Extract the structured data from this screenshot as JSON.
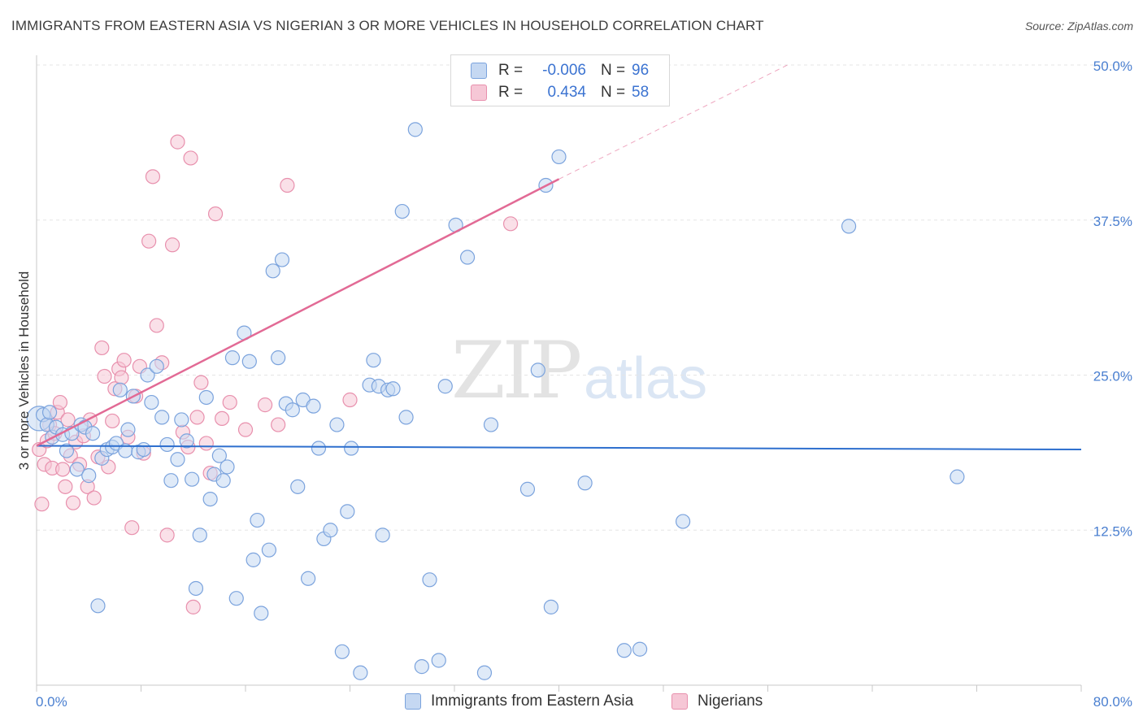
{
  "title": "IMMIGRANTS FROM EASTERN ASIA VS NIGERIAN 3 OR MORE VEHICLES IN HOUSEHOLD CORRELATION CHART",
  "source": "Source: ZipAtlas.com",
  "watermark": {
    "zip": "ZIP",
    "atlas": "atlas"
  },
  "legend": {
    "r_label": "R =",
    "n_label": "N =",
    "series": [
      {
        "r": "-0.006",
        "n": "96"
      },
      {
        "r": "0.434",
        "n": "58"
      }
    ]
  },
  "colors": {
    "blue_fill": "#c5d8f2",
    "blue_stroke": "#7ba3dd",
    "blue_line": "#2e6fce",
    "pink_fill": "#f6c7d6",
    "pink_stroke": "#e890ad",
    "pink_line": "#e26a95",
    "grid": "#e5e5e5",
    "tick_label": "#4a7fd0"
  },
  "chart_data": {
    "type": "scatter",
    "title": "IMMIGRANTS FROM EASTERN ASIA VS NIGERIAN 3 OR MORE VEHICLES IN HOUSEHOLD CORRELATION CHART",
    "xlabel": "",
    "ylabel": "3 or more Vehicles in Household",
    "xlim": [
      0,
      80
    ],
    "ylim": [
      0,
      50
    ],
    "x_tick_labels": [
      "0.0%",
      "80.0%"
    ],
    "y_ticks": [
      12.5,
      25.0,
      37.5,
      50.0
    ],
    "y_tick_labels": [
      "12.5%",
      "25.0%",
      "37.5%",
      "50.0%"
    ],
    "grid": true,
    "series": [
      {
        "name": "Immigrants from Eastern Asia",
        "color": "#7ba3dd",
        "trend": {
          "x": [
            0,
            80
          ],
          "y": [
            19.3,
            19.0
          ],
          "style": "solid"
        },
        "points": [
          [
            0.2,
            21.5
          ],
          [
            0.5,
            21.8
          ],
          [
            0.8,
            21.0
          ],
          [
            1.0,
            22.0
          ],
          [
            1.2,
            20.0
          ],
          [
            1.5,
            20.8
          ],
          [
            2.0,
            20.2
          ],
          [
            2.3,
            18.9
          ],
          [
            2.7,
            20.3
          ],
          [
            3.1,
            17.4
          ],
          [
            3.4,
            21.0
          ],
          [
            3.7,
            20.8
          ],
          [
            4.0,
            16.9
          ],
          [
            4.3,
            20.3
          ],
          [
            4.7,
            6.4
          ],
          [
            5.0,
            18.3
          ],
          [
            5.4,
            19.0
          ],
          [
            5.8,
            19.2
          ],
          [
            6.1,
            19.5
          ],
          [
            6.4,
            23.8
          ],
          [
            6.8,
            18.9
          ],
          [
            7.0,
            20.6
          ],
          [
            7.4,
            23.3
          ],
          [
            7.8,
            18.8
          ],
          [
            8.2,
            19.0
          ],
          [
            8.5,
            25.0
          ],
          [
            8.8,
            22.8
          ],
          [
            9.2,
            25.7
          ],
          [
            9.6,
            21.6
          ],
          [
            10.0,
            19.4
          ],
          [
            10.3,
            16.5
          ],
          [
            10.8,
            18.2
          ],
          [
            11.1,
            21.4
          ],
          [
            11.5,
            19.7
          ],
          [
            11.9,
            16.6
          ],
          [
            12.2,
            7.8
          ],
          [
            12.5,
            12.1
          ],
          [
            13.0,
            23.2
          ],
          [
            13.3,
            15.0
          ],
          [
            13.6,
            17.0
          ],
          [
            14.0,
            18.5
          ],
          [
            14.3,
            16.5
          ],
          [
            14.6,
            17.6
          ],
          [
            15.0,
            26.4
          ],
          [
            15.3,
            7.0
          ],
          [
            15.9,
            28.4
          ],
          [
            16.3,
            26.1
          ],
          [
            16.6,
            10.1
          ],
          [
            16.9,
            13.3
          ],
          [
            17.2,
            5.8
          ],
          [
            17.8,
            10.9
          ],
          [
            18.1,
            33.4
          ],
          [
            18.5,
            26.4
          ],
          [
            18.8,
            34.3
          ],
          [
            19.1,
            22.7
          ],
          [
            19.6,
            22.2
          ],
          [
            20.0,
            16.0
          ],
          [
            20.4,
            23.0
          ],
          [
            20.8,
            8.6
          ],
          [
            21.2,
            22.5
          ],
          [
            21.6,
            19.1
          ],
          [
            22.0,
            11.8
          ],
          [
            22.5,
            12.5
          ],
          [
            23.0,
            21.0
          ],
          [
            23.4,
            2.7
          ],
          [
            23.8,
            14.0
          ],
          [
            24.1,
            19.1
          ],
          [
            24.8,
            1.0
          ],
          [
            25.5,
            24.2
          ],
          [
            25.8,
            26.2
          ],
          [
            26.2,
            24.1
          ],
          [
            26.5,
            12.1
          ],
          [
            26.9,
            23.8
          ],
          [
            27.3,
            23.9
          ],
          [
            28.0,
            38.2
          ],
          [
            28.3,
            21.6
          ],
          [
            29.0,
            44.8
          ],
          [
            29.5,
            1.5
          ],
          [
            30.1,
            8.5
          ],
          [
            30.8,
            2.0
          ],
          [
            31.3,
            24.1
          ],
          [
            32.1,
            37.1
          ],
          [
            33.0,
            34.5
          ],
          [
            34.3,
            1.0
          ],
          [
            34.8,
            21.0
          ],
          [
            37.6,
            15.8
          ],
          [
            38.4,
            25.4
          ],
          [
            39.0,
            40.3
          ],
          [
            39.4,
            6.3
          ],
          [
            40.0,
            42.6
          ],
          [
            42.0,
            16.3
          ],
          [
            45.0,
            2.8
          ],
          [
            46.2,
            2.9
          ],
          [
            49.5,
            13.2
          ],
          [
            62.2,
            37.0
          ],
          [
            70.5,
            16.8
          ]
        ]
      },
      {
        "name": "Nigerians",
        "color": "#e890ad",
        "trend": {
          "x": [
            0,
            40
          ],
          "y": [
            19.3,
            40.8
          ],
          "style": "solid",
          "extended_x": [
            40,
            57.5
          ],
          "extended_y": [
            40.8,
            50.0
          ]
        },
        "points": [
          [
            0.2,
            19.0
          ],
          [
            0.4,
            14.6
          ],
          [
            0.6,
            17.8
          ],
          [
            0.8,
            19.7
          ],
          [
            1.0,
            21.0
          ],
          [
            1.2,
            17.5
          ],
          [
            1.4,
            20.3
          ],
          [
            1.6,
            22.0
          ],
          [
            1.8,
            22.8
          ],
          [
            2.0,
            17.4
          ],
          [
            2.2,
            16.0
          ],
          [
            2.4,
            21.4
          ],
          [
            2.6,
            18.5
          ],
          [
            2.8,
            14.7
          ],
          [
            3.0,
            19.6
          ],
          [
            3.3,
            17.8
          ],
          [
            3.6,
            20.1
          ],
          [
            3.9,
            16.0
          ],
          [
            4.1,
            21.4
          ],
          [
            4.4,
            15.1
          ],
          [
            4.7,
            18.4
          ],
          [
            5.0,
            27.2
          ],
          [
            5.2,
            24.9
          ],
          [
            5.5,
            17.6
          ],
          [
            5.8,
            21.3
          ],
          [
            6.0,
            23.9
          ],
          [
            6.3,
            25.5
          ],
          [
            6.5,
            24.8
          ],
          [
            6.7,
            26.2
          ],
          [
            7.0,
            20.0
          ],
          [
            7.3,
            12.7
          ],
          [
            7.6,
            23.3
          ],
          [
            7.9,
            25.7
          ],
          [
            8.2,
            18.7
          ],
          [
            8.6,
            35.8
          ],
          [
            8.9,
            41.0
          ],
          [
            9.2,
            29.0
          ],
          [
            9.6,
            26.0
          ],
          [
            10.0,
            12.1
          ],
          [
            10.4,
            35.5
          ],
          [
            10.8,
            43.8
          ],
          [
            11.2,
            20.4
          ],
          [
            11.6,
            19.2
          ],
          [
            11.8,
            42.5
          ],
          [
            12.0,
            6.3
          ],
          [
            12.3,
            21.6
          ],
          [
            12.6,
            24.4
          ],
          [
            13.0,
            19.5
          ],
          [
            13.3,
            17.1
          ],
          [
            13.7,
            38.0
          ],
          [
            14.2,
            21.5
          ],
          [
            14.8,
            22.8
          ],
          [
            16.0,
            20.6
          ],
          [
            17.5,
            22.6
          ],
          [
            18.5,
            21.0
          ],
          [
            19.2,
            40.3
          ],
          [
            24.0,
            23.0
          ],
          [
            36.3,
            37.2
          ]
        ]
      }
    ]
  },
  "bottom_legend": [
    "Immigrants from Eastern Asia",
    "Nigerians"
  ]
}
